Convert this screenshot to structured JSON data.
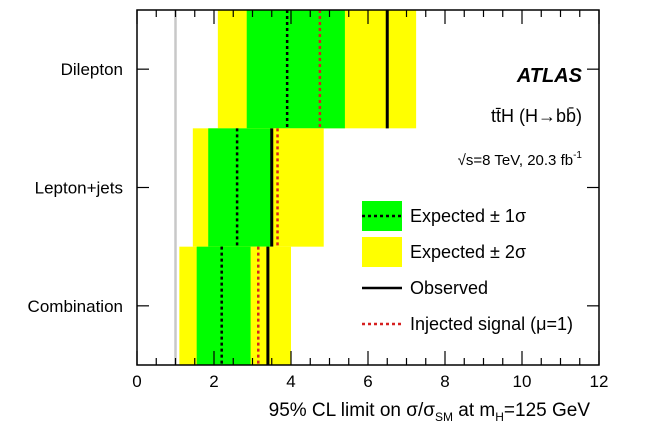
{
  "chart_data": {
    "type": "limit-bands",
    "categories": [
      "Dilepton",
      "Lepton+jets",
      "Combination"
    ],
    "xlim": [
      0,
      12
    ],
    "x_ticks": [
      "0",
      "2",
      "4",
      "6",
      "8",
      "10",
      "12"
    ],
    "reference_line": 1.0,
    "xlabel": {
      "prefix": "95% CL limit on σ/σ",
      "sub1": "SM",
      "mid": " at m",
      "sub2": "H",
      "suffix": "=125 GeV"
    },
    "rows": [
      {
        "category": "Dilepton",
        "band2": [
          2.1,
          7.25
        ],
        "band1": [
          2.85,
          5.4
        ],
        "expected": 3.9,
        "observed": 6.5,
        "injected": 4.75
      },
      {
        "category": "Lepton+jets",
        "band2": [
          1.45,
          4.85
        ],
        "band1": [
          1.85,
          3.5
        ],
        "expected": 2.6,
        "observed": 3.5,
        "injected": 3.65
      },
      {
        "category": "Combination",
        "band2": [
          1.1,
          4.0
        ],
        "band1": [
          1.55,
          2.95
        ],
        "expected": 2.2,
        "observed": 3.4,
        "injected": 3.15
      }
    ],
    "annotations": {
      "experiment": "ATLAS",
      "process": "tt̄H (H→bb̄)",
      "energy_prefix": "√s=8 TeV, 20.3 fb",
      "energy_sup": "-1"
    },
    "legend": {
      "placement": "right",
      "entries": [
        {
          "label": "Expected ± 1σ",
          "fill": "#00ff00",
          "line": "dotted",
          "line_color": "#000000"
        },
        {
          "label": "Expected ± 2σ",
          "fill": "#ffff00"
        },
        {
          "label": "Observed",
          "line": "solid",
          "line_color": "#000000"
        },
        {
          "label": "Injected signal (μ=1)",
          "line": "dotted",
          "line_color": "#d62020"
        }
      ]
    },
    "colors": {
      "band1": "#00ff00",
      "band2": "#ffff00",
      "injected": "#d62020",
      "reference": "#c8c8c8"
    }
  }
}
